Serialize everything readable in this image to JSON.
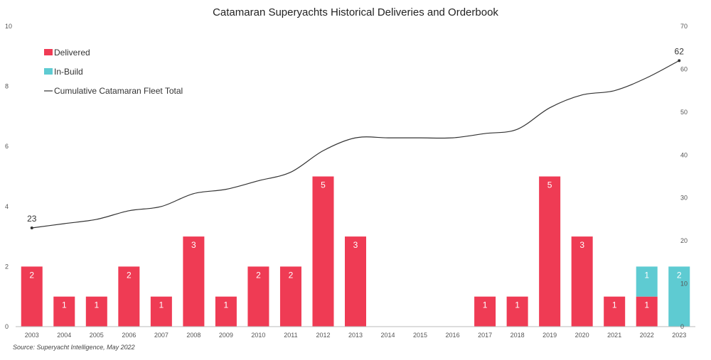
{
  "chart_data": {
    "type": "bar",
    "title": "Catamaran Superyachts Historical Deliveries and Orderbook",
    "categories": [
      "2003",
      "2004",
      "2005",
      "2006",
      "2007",
      "2008",
      "2009",
      "2010",
      "2011",
      "2012",
      "2013",
      "2014",
      "2015",
      "2016",
      "2017",
      "2018",
      "2019",
      "2020",
      "2021",
      "2022",
      "2023"
    ],
    "series": [
      {
        "name": "Delivered",
        "color": "#ef3b54",
        "values": [
          2,
          1,
          1,
          2,
          1,
          3,
          1,
          2,
          2,
          5,
          3,
          0,
          0,
          0,
          1,
          1,
          5,
          3,
          1,
          1,
          0
        ]
      },
      {
        "name": "In-Build",
        "color": "#5ecbd2",
        "values": [
          0,
          0,
          0,
          0,
          0,
          0,
          0,
          0,
          0,
          0,
          0,
          0,
          0,
          0,
          0,
          0,
          0,
          0,
          0,
          1,
          2
        ]
      },
      {
        "name": "Cumulative Catamaran Fleet Total",
        "color": "#333333",
        "type": "line",
        "axis": "right",
        "values": [
          23,
          24,
          25,
          27,
          28,
          31,
          32,
          34,
          36,
          41,
          44,
          44,
          44,
          44,
          45,
          46,
          51,
          54,
          55,
          58,
          62
        ]
      }
    ],
    "y_left": {
      "ylim": [
        0,
        10
      ],
      "ticks": [
        "0",
        "2",
        "4",
        "6",
        "8",
        "10"
      ]
    },
    "y_right": {
      "ylim": [
        0,
        70
      ],
      "ticks": [
        "0",
        "10",
        "20",
        "30",
        "40",
        "50",
        "60",
        "70"
      ]
    },
    "line_labels": [
      {
        "index": 0,
        "text": "23"
      },
      {
        "index": 20,
        "text": "62"
      }
    ],
    "legend_position": "top-left",
    "grid": false,
    "source": "Source: Superyacht Intelligence, May 2022"
  }
}
